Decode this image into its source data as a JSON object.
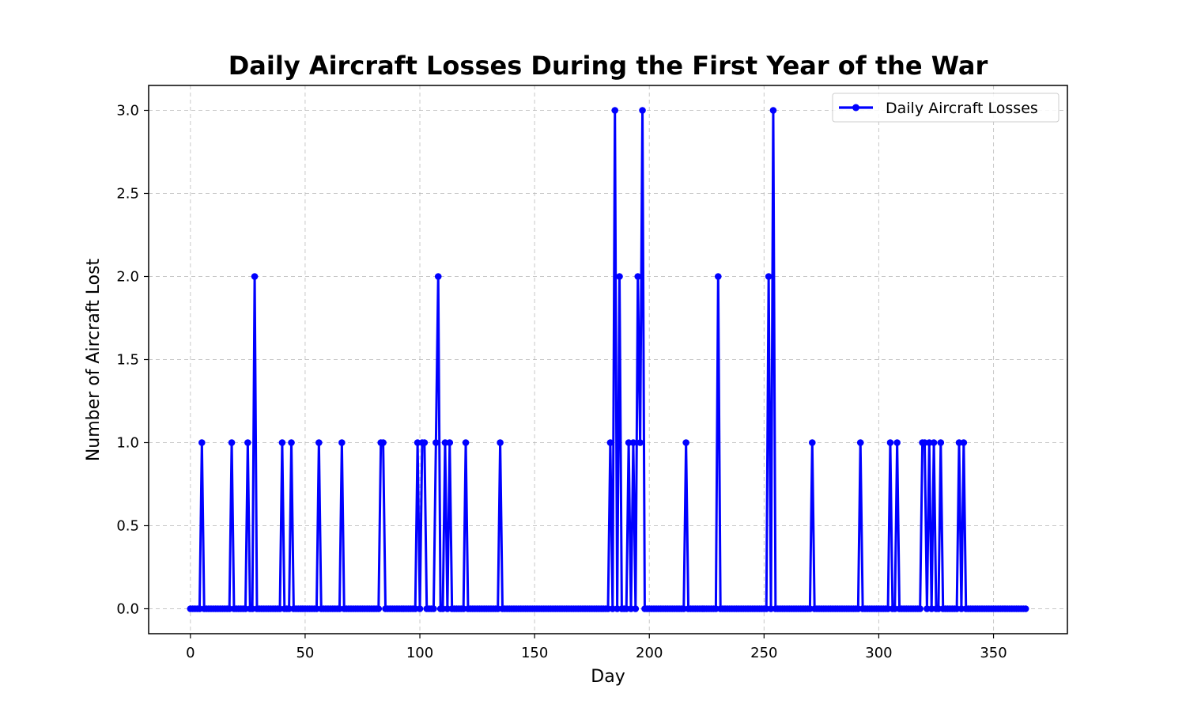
{
  "chart_data": {
    "type": "line",
    "title": "Daily Aircraft Losses During the First Year of the War",
    "xlabel": "Day",
    "ylabel": "Number of Aircraft Lost",
    "xlim": [
      -18.2,
      382.2
    ],
    "ylim": [
      -0.15,
      3.15
    ],
    "xticks": [
      0,
      50,
      100,
      150,
      200,
      250,
      300,
      350
    ],
    "xtick_labels": [
      "0",
      "50",
      "100",
      "150",
      "200",
      "250",
      "300",
      "350"
    ],
    "yticks": [
      0.0,
      0.5,
      1.0,
      1.5,
      2.0,
      2.5,
      3.0
    ],
    "ytick_labels": [
      "0.0",
      "0.5",
      "1.0",
      "1.5",
      "2.0",
      "2.5",
      "3.0"
    ],
    "grid": true,
    "legend_position": "top-right",
    "days": 365,
    "series": [
      {
        "name": "Daily Aircraft Losses",
        "color": "#0000ff",
        "marker": "circle",
        "nonzero_points": [
          [
            5,
            1
          ],
          [
            18,
            1
          ],
          [
            25,
            1
          ],
          [
            28,
            2
          ],
          [
            40,
            1
          ],
          [
            44,
            1
          ],
          [
            56,
            1
          ],
          [
            66,
            1
          ],
          [
            83,
            1
          ],
          [
            84,
            1
          ],
          [
            99,
            1
          ],
          [
            101,
            1
          ],
          [
            102,
            1
          ],
          [
            107,
            1
          ],
          [
            108,
            2
          ],
          [
            111,
            1
          ],
          [
            113,
            1
          ],
          [
            120,
            1
          ],
          [
            135,
            1
          ],
          [
            183,
            1
          ],
          [
            185,
            3
          ],
          [
            187,
            2
          ],
          [
            191,
            1
          ],
          [
            193,
            1
          ],
          [
            195,
            2
          ],
          [
            196,
            1
          ],
          [
            197,
            3
          ],
          [
            216,
            1
          ],
          [
            230,
            2
          ],
          [
            252,
            2
          ],
          [
            254,
            3
          ],
          [
            271,
            1
          ],
          [
            292,
            1
          ],
          [
            305,
            1
          ],
          [
            308,
            1
          ],
          [
            319,
            1
          ],
          [
            320,
            1
          ],
          [
            322,
            1
          ],
          [
            324,
            1
          ],
          [
            327,
            1
          ],
          [
            335,
            1
          ],
          [
            337,
            1
          ]
        ]
      }
    ]
  }
}
